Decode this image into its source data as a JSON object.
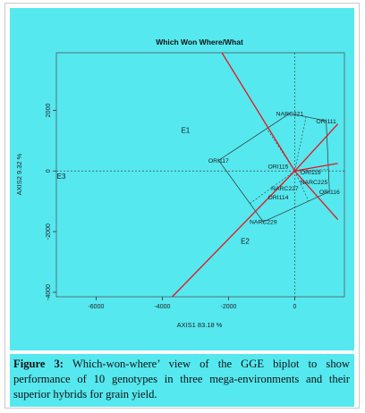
{
  "colors": {
    "panel_bg": "#55e8ef",
    "sector_line": "#e8141e",
    "polygon_line": "#333333",
    "origin_axis": "#444444"
  },
  "caption": {
    "label": "Figure 3:",
    "text": " Which-won-where’ view of the GGE biplot to show performance of 10 genotypes in three mega-environments and their superior hybrids for grain yield."
  },
  "chart_data": {
    "type": "scatter",
    "title": "Which Won Where/What",
    "xlabel": "AXIS1 83.18 %",
    "ylabel": "AXIS2 9.32 %",
    "xlim": [
      -7200,
      1500
    ],
    "ylim": [
      -4150,
      3900
    ],
    "x_ticks": [
      -6000,
      -4000,
      -2000,
      0
    ],
    "x_tick_labels": [
      "-6000",
      "-4000",
      "-2000",
      "0"
    ],
    "y_ticks": [
      -4000,
      -2000,
      0,
      2000
    ],
    "y_tick_labels": [
      "-4000",
      "-2000",
      "0",
      "2000"
    ],
    "grid": false,
    "origin_lines": true,
    "genotypes": [
      {
        "label": "NARC221",
        "x": -150,
        "y": 1900
      },
      {
        "label": "ORI111",
        "x": 950,
        "y": 1650
      },
      {
        "label": "ORI117",
        "x": -2300,
        "y": 350
      },
      {
        "label": "ORI115",
        "x": -500,
        "y": 150
      },
      {
        "label": "ORI119",
        "x": 480,
        "y": -40
      },
      {
        "label": "NARC225",
        "x": 580,
        "y": -360
      },
      {
        "label": "NARC227",
        "x": -300,
        "y": -570
      },
      {
        "label": "ORI116",
        "x": 1050,
        "y": -680
      },
      {
        "label": "ORI114",
        "x": -500,
        "y": -860
      },
      {
        "label": "NARC229",
        "x": -950,
        "y": -1680
      }
    ],
    "environments": [
      {
        "label": "E1",
        "x": -3300,
        "y": 1350
      },
      {
        "label": "E2",
        "x": -1500,
        "y": -2300
      },
      {
        "label": "E3",
        "x": -7050,
        "y": -170
      }
    ],
    "polygon": [
      "NARC221",
      "ORI111",
      "ORI116",
      "NARC229",
      "ORI117"
    ],
    "sector_rays": [
      {
        "x": -2200,
        "y": 3900
      },
      {
        "x": 1300,
        "y": 1550
      },
      {
        "x": 1300,
        "y": 250
      },
      {
        "x": 1300,
        "y": -1600
      },
      {
        "x": -3700,
        "y": -4150
      }
    ]
  }
}
